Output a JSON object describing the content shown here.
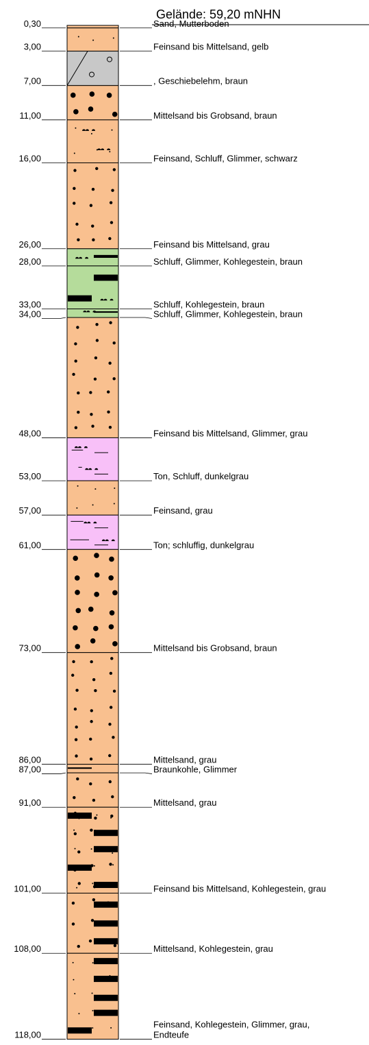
{
  "header": {
    "title": "Gelände: 59,20 mNHN"
  },
  "layers": [
    {
      "depth": {
        "value": 0.3,
        "label": "0,30"
      },
      "description": [
        "Sand, Mutterboden"
      ],
      "color": "#f9c08f",
      "pattern": [
        "fine"
      ]
    },
    {
      "depth": {
        "value": 3.0,
        "label": "3,00"
      },
      "description": [
        "Feinsand bis Mittelsand, gelb"
      ],
      "color": "#f9c08f",
      "pattern": [
        "fine"
      ]
    },
    {
      "depth": {
        "value": 7.0,
        "label": "7,00"
      },
      "description": [
        ", Geschiebelehm, braun"
      ],
      "color": "#c8c8c8",
      "pattern": [
        "till"
      ]
    },
    {
      "depth": {
        "value": 11.0,
        "label": "11,00"
      },
      "description": [
        "Mittelsand bis Grobsand, braun"
      ],
      "color": "#f9c08f",
      "pattern": [
        "coarse"
      ]
    },
    {
      "depth": {
        "value": 16.0,
        "label": "16,00"
      },
      "description": [
        "Feinsand, Schluff, Glimmer, schwarz"
      ],
      "color": "#f9c08f",
      "pattern": [
        "fine",
        "silt"
      ]
    },
    {
      "depth": {
        "value": 26.0,
        "label": "26,00"
      },
      "description": [
        "Feinsand bis Mittelsand, grau"
      ],
      "color": "#f9c08f",
      "pattern": [
        "medium"
      ]
    },
    {
      "depth": {
        "value": 28.0,
        "label": "28,00"
      },
      "description": [
        "Schluff, Glimmer, Kohlegestein, braun"
      ],
      "color": "#b5dc9b",
      "pattern": [
        "silt",
        "coal"
      ]
    },
    {
      "depth": {
        "value": 33.0,
        "label": "33,00"
      },
      "description": [
        "Schluff, Kohlegestein, braun"
      ],
      "color": "#b5dc9b",
      "pattern": [
        "silt",
        "coal"
      ]
    },
    {
      "depth": {
        "value": 34.0,
        "label": "34,00"
      },
      "description": [
        "Schluff, Glimmer, Kohlegestein, braun"
      ],
      "color": "#b5dc9b",
      "pattern": [
        "silt",
        "coal"
      ]
    },
    {
      "depth": {
        "value": 48.0,
        "label": "48,00"
      },
      "description": [
        "Feinsand bis Mittelsand, Glimmer, grau"
      ],
      "color": "#f9c08f",
      "pattern": [
        "medium"
      ]
    },
    {
      "depth": {
        "value": 53.0,
        "label": "53,00"
      },
      "description": [
        "Ton, Schluff, dunkelgrau"
      ],
      "color": "#f8c0f8",
      "pattern": [
        "clay",
        "silt"
      ]
    },
    {
      "depth": {
        "value": 57.0,
        "label": "57,00"
      },
      "description": [
        "Feinsand, grau"
      ],
      "color": "#f9c08f",
      "pattern": [
        "fine"
      ]
    },
    {
      "depth": {
        "value": 61.0,
        "label": "61,00"
      },
      "description": [
        "Ton; schluffig, dunkelgrau"
      ],
      "color": "#f8c0f8",
      "pattern": [
        "clay",
        "silt"
      ]
    },
    {
      "depth": {
        "value": 73.0,
        "label": "73,00"
      },
      "description": [
        "Mittelsand bis Grobsand, braun"
      ],
      "color": "#f9c08f",
      "pattern": [
        "coarse"
      ]
    },
    {
      "depth": {
        "value": 86.0,
        "label": "86,00"
      },
      "description": [
        "Mittelsand, grau"
      ],
      "color": "#f9c08f",
      "pattern": [
        "medium"
      ]
    },
    {
      "depth": {
        "value": 87.0,
        "label": "87,00"
      },
      "description": [
        "Braunkohle, Glimmer"
      ],
      "color": "#f9c08f",
      "pattern": [
        "coal"
      ]
    },
    {
      "depth": {
        "value": 91.0,
        "label": "91,00"
      },
      "description": [
        "Mittelsand, grau"
      ],
      "color": "#f9c08f",
      "pattern": [
        "medium"
      ]
    },
    {
      "depth": {
        "value": 101.0,
        "label": "101,00"
      },
      "description": [
        "Feinsand bis Mittelsand, Kohlegestein, grau"
      ],
      "color": "#f9c08f",
      "pattern": [
        "fine",
        "medium",
        "coal"
      ]
    },
    {
      "depth": {
        "value": 108.0,
        "label": "108,00"
      },
      "description": [
        "Mittelsand, Kohlegestein, grau"
      ],
      "color": "#f9c08f",
      "pattern": [
        "medium",
        "coal"
      ]
    },
    {
      "depth": {
        "value": 118.0,
        "label": "118,00"
      },
      "description": [
        "Feinsand, Kohlegestein, Glimmer, grau,",
        "Endteufe"
      ],
      "color": "#f9c08f",
      "pattern": [
        "fine",
        "coal"
      ]
    }
  ]
}
